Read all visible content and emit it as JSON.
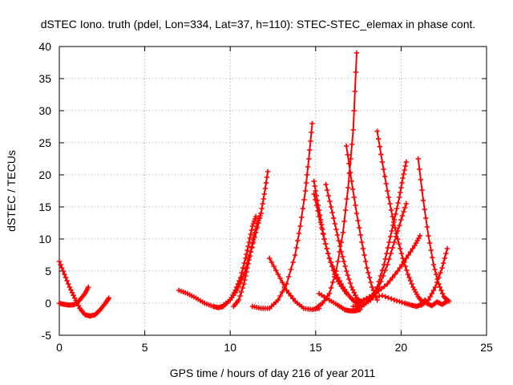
{
  "chart_data": {
    "type": "scatter",
    "title": "dSTEC Iono. truth (pdel, Lon=334, Lat=37, h=110): STEC-STEC_elemax in phase cont.",
    "xlabel": "GPS time / hours of day 216 of year 2011",
    "ylabel": "dSTEC  / TECUs",
    "xlim": [
      0,
      25
    ],
    "ylim": [
      -5,
      40
    ],
    "xticks": [
      0,
      5,
      10,
      15,
      20,
      25
    ],
    "yticks": [
      -5,
      0,
      5,
      10,
      15,
      20,
      25,
      30,
      35,
      40
    ],
    "grid": true,
    "marker": "plus",
    "color": "#ff0000",
    "series": [
      {
        "x": [
          0.0,
          0.3,
          0.6,
          0.9,
          1.2,
          1.5,
          1.8
        ],
        "y": [
          6.5,
          4.5,
          2.5,
          0.8,
          -0.8,
          -1.8,
          -2.0
        ]
      },
      {
        "x": [
          0.0,
          0.3,
          0.6,
          0.9,
          1.2,
          1.5,
          1.7
        ],
        "y": [
          0.0,
          -0.2,
          -0.3,
          -0.2,
          0.5,
          1.5,
          2.5
        ]
      },
      {
        "x": [
          1.8,
          2.1,
          2.4,
          2.7,
          2.9
        ],
        "y": [
          -2.0,
          -1.8,
          -1.0,
          0.0,
          0.8
        ]
      },
      {
        "x": [
          7.0,
          7.5,
          8.0,
          8.5,
          9.0,
          9.3,
          9.6,
          10.0,
          10.4,
          10.8,
          11.2,
          11.5,
          11.8,
          12.0,
          12.2
        ],
        "y": [
          2.0,
          1.5,
          0.8,
          0.0,
          -0.5,
          -0.7,
          -0.5,
          0.5,
          2.0,
          4.5,
          8.0,
          11.0,
          14.0,
          17.0,
          20.5
        ]
      },
      {
        "x": [
          9.5,
          10.0,
          10.3,
          10.6,
          10.9,
          11.1,
          11.3,
          11.5
        ],
        "y": [
          -0.5,
          0.5,
          2.0,
          4.0,
          7.0,
          9.5,
          12.0,
          13.5
        ]
      },
      {
        "x": [
          10.2,
          10.5,
          10.8,
          11.0,
          11.2,
          11.4,
          11.6,
          11.8
        ],
        "y": [
          -0.5,
          0.5,
          3.0,
          5.5,
          8.0,
          10.5,
          12.5,
          14.0
        ]
      },
      {
        "x": [
          12.3,
          12.8,
          13.3,
          13.8,
          14.3,
          14.8,
          15.2
        ],
        "y": [
          7.0,
          4.5,
          2.0,
          0.3,
          -0.8,
          -1.0,
          -0.8
        ]
      },
      {
        "x": [
          11.3,
          11.8,
          12.3,
          12.8,
          13.3,
          13.8,
          14.1,
          14.4,
          14.6,
          14.8
        ],
        "y": [
          -0.5,
          -0.8,
          -0.8,
          0.5,
          3.0,
          7.5,
          12.0,
          17.5,
          22.5,
          28.0
        ]
      },
      {
        "x": [
          14.9,
          15.1,
          15.3,
          15.5,
          15.8,
          16.1,
          16.4,
          16.8
        ],
        "y": [
          19.0,
          16.0,
          13.0,
          10.0,
          7.0,
          4.5,
          3.0,
          1.5
        ]
      },
      {
        "x": [
          14.9,
          15.2,
          15.5,
          15.8,
          16.2,
          16.6,
          17.0,
          17.3,
          17.6
        ],
        "y": [
          17.0,
          13.5,
          10.0,
          7.0,
          4.5,
          2.5,
          1.0,
          0.2,
          -0.3
        ]
      },
      {
        "x": [
          15.6,
          15.9,
          16.2,
          16.5,
          16.8,
          17.1,
          17.4,
          17.7
        ],
        "y": [
          18.5,
          15.0,
          11.5,
          8.0,
          5.0,
          2.5,
          0.8,
          0.0
        ]
      },
      {
        "x": [
          15.2,
          15.8,
          16.3,
          16.7,
          17.0,
          17.3,
          17.6
        ],
        "y": [
          1.5,
          0.5,
          -0.3,
          -1.0,
          -1.2,
          -1.2,
          -1.0
        ]
      },
      {
        "x": [
          15.0,
          15.4,
          15.8,
          16.2,
          16.6,
          16.9,
          17.2,
          17.4
        ],
        "y": [
          -0.8,
          0.0,
          1.5,
          5.0,
          11.0,
          18.0,
          27.0,
          39.0
        ]
      },
      {
        "x": [
          16.8,
          17.1,
          17.4,
          17.7,
          18.0,
          18.3,
          18.6
        ],
        "y": [
          24.5,
          19.0,
          14.0,
          9.5,
          5.5,
          2.5,
          0.5
        ]
      },
      {
        "x": [
          17.2,
          17.7,
          18.2,
          18.6,
          19.0,
          19.3,
          19.6,
          19.9,
          20.1,
          20.3
        ],
        "y": [
          -0.5,
          -0.5,
          0.5,
          2.5,
          6.0,
          9.5,
          13.0,
          16.5,
          19.5,
          22.0
        ]
      },
      {
        "x": [
          17.2,
          17.7,
          18.2,
          18.7,
          19.2,
          19.6,
          20.0,
          20.3
        ],
        "y": [
          -1.0,
          -0.5,
          0.5,
          2.5,
          6.0,
          9.5,
          13.0,
          15.5
        ]
      },
      {
        "x": [
          18.6,
          18.9,
          19.2,
          19.5,
          19.8,
          20.1,
          20.4,
          20.7,
          21.0,
          21.3
        ],
        "y": [
          26.8,
          22.0,
          17.5,
          13.5,
          10.0,
          7.0,
          4.5,
          2.5,
          1.0,
          0.0
        ]
      },
      {
        "x": [
          17.5,
          18.2,
          18.9,
          19.6,
          20.2,
          20.6,
          20.9,
          21.2,
          21.4
        ],
        "y": [
          0.2,
          0.8,
          1.2,
          0.5,
          0.0,
          -0.3,
          -0.5,
          -0.2,
          0.5
        ]
      },
      {
        "x": [
          17.8,
          18.5,
          19.2,
          19.8,
          20.3,
          20.8,
          21.1
        ],
        "y": [
          0.5,
          1.5,
          3.0,
          5.0,
          7.0,
          9.0,
          10.5
        ]
      },
      {
        "x": [
          21.0,
          21.3,
          21.6,
          21.9,
          22.2,
          22.5,
          22.8
        ],
        "y": [
          22.5,
          16.0,
          10.5,
          6.0,
          3.0,
          1.0,
          0.3
        ]
      },
      {
        "x": [
          21.2,
          21.6,
          22.0,
          22.4,
          22.7
        ],
        "y": [
          -0.3,
          0.5,
          2.5,
          5.5,
          8.5
        ]
      },
      {
        "x": [
          21.5,
          21.8,
          22.1,
          22.4,
          22.7
        ],
        "y": [
          0.0,
          -0.4,
          0.2,
          -0.2,
          0.3
        ]
      }
    ]
  }
}
